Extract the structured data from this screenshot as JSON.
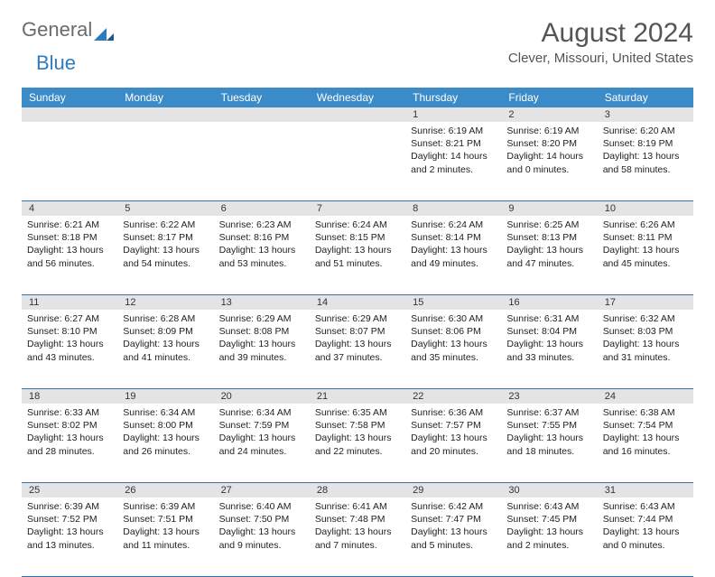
{
  "logo": {
    "part1": "General",
    "part2": "Blue"
  },
  "title": "August 2024",
  "location": "Clever, Missouri, United States",
  "colors": {
    "header_bg": "#3b8bc9",
    "daynum_bg": "#e4e4e4",
    "week_border": "#3b72a5",
    "text": "#222222",
    "title_text": "#555555"
  },
  "day_names": [
    "Sunday",
    "Monday",
    "Tuesday",
    "Wednesday",
    "Thursday",
    "Friday",
    "Saturday"
  ],
  "weeks": [
    {
      "nums": [
        "",
        "",
        "",
        "",
        "1",
        "2",
        "3"
      ],
      "cells": [
        null,
        null,
        null,
        null,
        {
          "sunrise": "Sunrise: 6:19 AM",
          "sunset": "Sunset: 8:21 PM",
          "day1": "Daylight: 14 hours",
          "day2": "and 2 minutes."
        },
        {
          "sunrise": "Sunrise: 6:19 AM",
          "sunset": "Sunset: 8:20 PM",
          "day1": "Daylight: 14 hours",
          "day2": "and 0 minutes."
        },
        {
          "sunrise": "Sunrise: 6:20 AM",
          "sunset": "Sunset: 8:19 PM",
          "day1": "Daylight: 13 hours",
          "day2": "and 58 minutes."
        }
      ]
    },
    {
      "nums": [
        "4",
        "5",
        "6",
        "7",
        "8",
        "9",
        "10"
      ],
      "cells": [
        {
          "sunrise": "Sunrise: 6:21 AM",
          "sunset": "Sunset: 8:18 PM",
          "day1": "Daylight: 13 hours",
          "day2": "and 56 minutes."
        },
        {
          "sunrise": "Sunrise: 6:22 AM",
          "sunset": "Sunset: 8:17 PM",
          "day1": "Daylight: 13 hours",
          "day2": "and 54 minutes."
        },
        {
          "sunrise": "Sunrise: 6:23 AM",
          "sunset": "Sunset: 8:16 PM",
          "day1": "Daylight: 13 hours",
          "day2": "and 53 minutes."
        },
        {
          "sunrise": "Sunrise: 6:24 AM",
          "sunset": "Sunset: 8:15 PM",
          "day1": "Daylight: 13 hours",
          "day2": "and 51 minutes."
        },
        {
          "sunrise": "Sunrise: 6:24 AM",
          "sunset": "Sunset: 8:14 PM",
          "day1": "Daylight: 13 hours",
          "day2": "and 49 minutes."
        },
        {
          "sunrise": "Sunrise: 6:25 AM",
          "sunset": "Sunset: 8:13 PM",
          "day1": "Daylight: 13 hours",
          "day2": "and 47 minutes."
        },
        {
          "sunrise": "Sunrise: 6:26 AM",
          "sunset": "Sunset: 8:11 PM",
          "day1": "Daylight: 13 hours",
          "day2": "and 45 minutes."
        }
      ]
    },
    {
      "nums": [
        "11",
        "12",
        "13",
        "14",
        "15",
        "16",
        "17"
      ],
      "cells": [
        {
          "sunrise": "Sunrise: 6:27 AM",
          "sunset": "Sunset: 8:10 PM",
          "day1": "Daylight: 13 hours",
          "day2": "and 43 minutes."
        },
        {
          "sunrise": "Sunrise: 6:28 AM",
          "sunset": "Sunset: 8:09 PM",
          "day1": "Daylight: 13 hours",
          "day2": "and 41 minutes."
        },
        {
          "sunrise": "Sunrise: 6:29 AM",
          "sunset": "Sunset: 8:08 PM",
          "day1": "Daylight: 13 hours",
          "day2": "and 39 minutes."
        },
        {
          "sunrise": "Sunrise: 6:29 AM",
          "sunset": "Sunset: 8:07 PM",
          "day1": "Daylight: 13 hours",
          "day2": "and 37 minutes."
        },
        {
          "sunrise": "Sunrise: 6:30 AM",
          "sunset": "Sunset: 8:06 PM",
          "day1": "Daylight: 13 hours",
          "day2": "and 35 minutes."
        },
        {
          "sunrise": "Sunrise: 6:31 AM",
          "sunset": "Sunset: 8:04 PM",
          "day1": "Daylight: 13 hours",
          "day2": "and 33 minutes."
        },
        {
          "sunrise": "Sunrise: 6:32 AM",
          "sunset": "Sunset: 8:03 PM",
          "day1": "Daylight: 13 hours",
          "day2": "and 31 minutes."
        }
      ]
    },
    {
      "nums": [
        "18",
        "19",
        "20",
        "21",
        "22",
        "23",
        "24"
      ],
      "cells": [
        {
          "sunrise": "Sunrise: 6:33 AM",
          "sunset": "Sunset: 8:02 PM",
          "day1": "Daylight: 13 hours",
          "day2": "and 28 minutes."
        },
        {
          "sunrise": "Sunrise: 6:34 AM",
          "sunset": "Sunset: 8:00 PM",
          "day1": "Daylight: 13 hours",
          "day2": "and 26 minutes."
        },
        {
          "sunrise": "Sunrise: 6:34 AM",
          "sunset": "Sunset: 7:59 PM",
          "day1": "Daylight: 13 hours",
          "day2": "and 24 minutes."
        },
        {
          "sunrise": "Sunrise: 6:35 AM",
          "sunset": "Sunset: 7:58 PM",
          "day1": "Daylight: 13 hours",
          "day2": "and 22 minutes."
        },
        {
          "sunrise": "Sunrise: 6:36 AM",
          "sunset": "Sunset: 7:57 PM",
          "day1": "Daylight: 13 hours",
          "day2": "and 20 minutes."
        },
        {
          "sunrise": "Sunrise: 6:37 AM",
          "sunset": "Sunset: 7:55 PM",
          "day1": "Daylight: 13 hours",
          "day2": "and 18 minutes."
        },
        {
          "sunrise": "Sunrise: 6:38 AM",
          "sunset": "Sunset: 7:54 PM",
          "day1": "Daylight: 13 hours",
          "day2": "and 16 minutes."
        }
      ]
    },
    {
      "nums": [
        "25",
        "26",
        "27",
        "28",
        "29",
        "30",
        "31"
      ],
      "cells": [
        {
          "sunrise": "Sunrise: 6:39 AM",
          "sunset": "Sunset: 7:52 PM",
          "day1": "Daylight: 13 hours",
          "day2": "and 13 minutes."
        },
        {
          "sunrise": "Sunrise: 6:39 AM",
          "sunset": "Sunset: 7:51 PM",
          "day1": "Daylight: 13 hours",
          "day2": "and 11 minutes."
        },
        {
          "sunrise": "Sunrise: 6:40 AM",
          "sunset": "Sunset: 7:50 PM",
          "day1": "Daylight: 13 hours",
          "day2": "and 9 minutes."
        },
        {
          "sunrise": "Sunrise: 6:41 AM",
          "sunset": "Sunset: 7:48 PM",
          "day1": "Daylight: 13 hours",
          "day2": "and 7 minutes."
        },
        {
          "sunrise": "Sunrise: 6:42 AM",
          "sunset": "Sunset: 7:47 PM",
          "day1": "Daylight: 13 hours",
          "day2": "and 5 minutes."
        },
        {
          "sunrise": "Sunrise: 6:43 AM",
          "sunset": "Sunset: 7:45 PM",
          "day1": "Daylight: 13 hours",
          "day2": "and 2 minutes."
        },
        {
          "sunrise": "Sunrise: 6:43 AM",
          "sunset": "Sunset: 7:44 PM",
          "day1": "Daylight: 13 hours",
          "day2": "and 0 minutes."
        }
      ]
    }
  ]
}
